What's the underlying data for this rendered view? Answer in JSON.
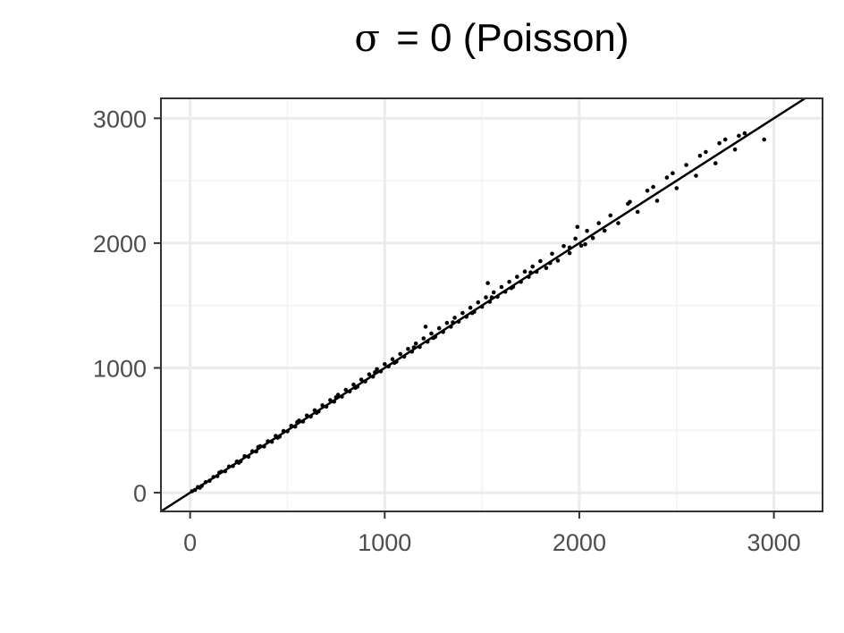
{
  "chart_data": {
    "type": "scatter",
    "title": "σ  = 0 (Poisson)",
    "title_symbol": "σ",
    "title_text": "= 0 (Poisson)",
    "xlabel": "",
    "ylabel": "",
    "xlim": [
      -150,
      3250
    ],
    "ylim": [
      -150,
      3160
    ],
    "xticks": [
      0,
      1000,
      2000,
      3000
    ],
    "yticks": [
      0,
      1000,
      2000,
      3000
    ],
    "xtick_labels": [
      "0",
      "1000",
      "2000",
      "3000"
    ],
    "ytick_labels": [
      "0",
      "1000",
      "2000",
      "3000"
    ],
    "grid": true,
    "reference_line": {
      "slope": 1,
      "intercept": 0
    },
    "point_color": "#000000",
    "series": [
      {
        "points": [
          [
            10,
            12
          ],
          [
            25,
            22
          ],
          [
            40,
            45
          ],
          [
            60,
            55
          ],
          [
            80,
            84
          ],
          [
            100,
            96
          ],
          [
            120,
            126
          ],
          [
            140,
            133
          ],
          [
            160,
            168
          ],
          [
            180,
            172
          ],
          [
            200,
            210
          ],
          [
            220,
            214
          ],
          [
            240,
            250
          ],
          [
            260,
            252
          ],
          [
            280,
            292
          ],
          [
            300,
            288
          ],
          [
            320,
            332
          ],
          [
            340,
            330
          ],
          [
            360,
            372
          ],
          [
            380,
            370
          ],
          [
            400,
            412
          ],
          [
            420,
            408
          ],
          [
            440,
            455
          ],
          [
            460,
            450
          ],
          [
            480,
            494
          ],
          [
            500,
            492
          ],
          [
            520,
            536
          ],
          [
            540,
            530
          ],
          [
            560,
            578
          ],
          [
            580,
            570
          ],
          [
            600,
            618
          ],
          [
            620,
            610
          ],
          [
            640,
            660
          ],
          [
            660,
            650
          ],
          [
            680,
            700
          ],
          [
            700,
            690
          ],
          [
            720,
            742
          ],
          [
            740,
            730
          ],
          [
            760,
            784
          ],
          [
            780,
            770
          ],
          [
            800,
            824
          ],
          [
            820,
            812
          ],
          [
            840,
            866
          ],
          [
            860,
            850
          ],
          [
            880,
            906
          ],
          [
            900,
            892
          ],
          [
            920,
            948
          ],
          [
            940,
            930
          ],
          [
            960,
            990
          ],
          [
            980,
            972
          ],
          [
            1000,
            1030
          ],
          [
            1020,
            1012
          ],
          [
            1040,
            1070
          ],
          [
            1060,
            1050
          ],
          [
            1080,
            1112
          ],
          [
            1100,
            1090
          ],
          [
            1120,
            1152
          ],
          [
            1140,
            1130
          ],
          [
            1160,
            1195
          ],
          [
            1180,
            1168
          ],
          [
            1200,
            1236
          ],
          [
            1220,
            1210
          ],
          [
            1240,
            1276
          ],
          [
            1260,
            1250
          ],
          [
            1280,
            1318
          ],
          [
            1300,
            1288
          ],
          [
            1320,
            1360
          ],
          [
            1340,
            1330
          ],
          [
            1360,
            1402
          ],
          [
            1380,
            1370
          ],
          [
            1400,
            1440
          ],
          [
            1420,
            1410
          ],
          [
            1440,
            1482
          ],
          [
            1460,
            1450
          ],
          [
            1480,
            1525
          ],
          [
            1500,
            1490
          ],
          [
            1520,
            1565
          ],
          [
            1540,
            1530
          ],
          [
            1560,
            1605
          ],
          [
            1580,
            1570
          ],
          [
            1600,
            1648
          ],
          [
            1620,
            1610
          ],
          [
            1640,
            1690
          ],
          [
            1660,
            1650
          ],
          [
            1680,
            1730
          ],
          [
            1700,
            1690
          ],
          [
            1720,
            1772
          ],
          [
            1740,
            1730
          ],
          [
            1760,
            1812
          ],
          [
            1780,
            1770
          ],
          [
            1800,
            1855
          ],
          [
            1830,
            1800
          ],
          [
            1860,
            1915
          ],
          [
            1890,
            1860
          ],
          [
            1920,
            1976
          ],
          [
            1950,
            1920
          ],
          [
            1980,
            2036
          ],
          [
            2010,
            1980
          ],
          [
            2040,
            2098
          ],
          [
            2070,
            2040
          ],
          [
            2100,
            2160
          ],
          [
            2130,
            2100
          ],
          [
            2160,
            2222
          ],
          [
            2200,
            2160
          ],
          [
            2250,
            2315
          ],
          [
            2300,
            2250
          ],
          [
            2350,
            2420
          ],
          [
            2400,
            2340
          ],
          [
            2450,
            2525
          ],
          [
            2500,
            2440
          ],
          [
            2550,
            2626
          ],
          [
            2600,
            2540
          ],
          [
            2650,
            2730
          ],
          [
            2700,
            2640
          ],
          [
            2750,
            2830
          ],
          [
            2800,
            2750
          ],
          [
            2850,
            2880
          ],
          [
            2950,
            2830
          ],
          [
            50,
            40
          ],
          [
            150,
            160
          ],
          [
            250,
            240
          ],
          [
            350,
            365
          ],
          [
            450,
            440
          ],
          [
            550,
            565
          ],
          [
            650,
            640
          ],
          [
            750,
            765
          ],
          [
            850,
            840
          ],
          [
            950,
            965
          ],
          [
            1050,
            1040
          ],
          [
            1150,
            1165
          ],
          [
            1250,
            1240
          ],
          [
            1350,
            1365
          ],
          [
            1450,
            1440
          ],
          [
            1550,
            1565
          ],
          [
            1650,
            1640
          ],
          [
            1750,
            1765
          ],
          [
            1850,
            1840
          ],
          [
            1950,
            1965
          ],
          [
            1990,
            2130
          ],
          [
            2030,
            1990
          ],
          [
            2260,
            2330
          ],
          [
            2380,
            2450
          ],
          [
            2480,
            2560
          ],
          [
            2620,
            2700
          ],
          [
            2720,
            2800
          ],
          [
            2820,
            2860
          ],
          [
            1530,
            1680
          ],
          [
            1210,
            1330
          ]
        ]
      }
    ]
  }
}
